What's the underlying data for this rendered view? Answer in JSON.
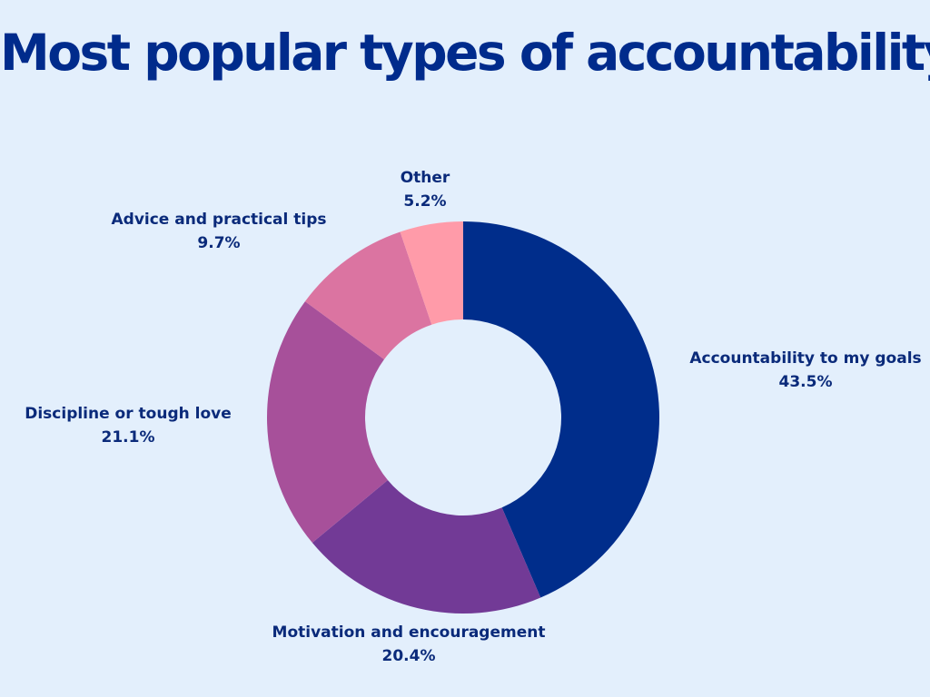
{
  "title": "Most popular types of accountability",
  "chart_data": {
    "type": "pie",
    "variant": "donut",
    "title": "Most popular types of accountability",
    "start": "12 o'clock, clockwise",
    "slices": [
      {
        "label": "Accountability to my goals",
        "value": 43.5,
        "value_label": "43.5%",
        "color": "#002D8B"
      },
      {
        "label": "Motivation and encouragement",
        "value": 20.4,
        "value_label": "20.4%",
        "color": "#723A96"
      },
      {
        "label": "Discipline or tough love",
        "value": 21.1,
        "value_label": "21.1%",
        "color": "#A7509A"
      },
      {
        "label": "Advice and practical tips",
        "value": 9.7,
        "value_label": "9.7%",
        "color": "#DB74A1"
      },
      {
        "label": "Other",
        "value": 5.2,
        "value_label": "5.2%",
        "color": "#FF9BA9"
      }
    ]
  }
}
